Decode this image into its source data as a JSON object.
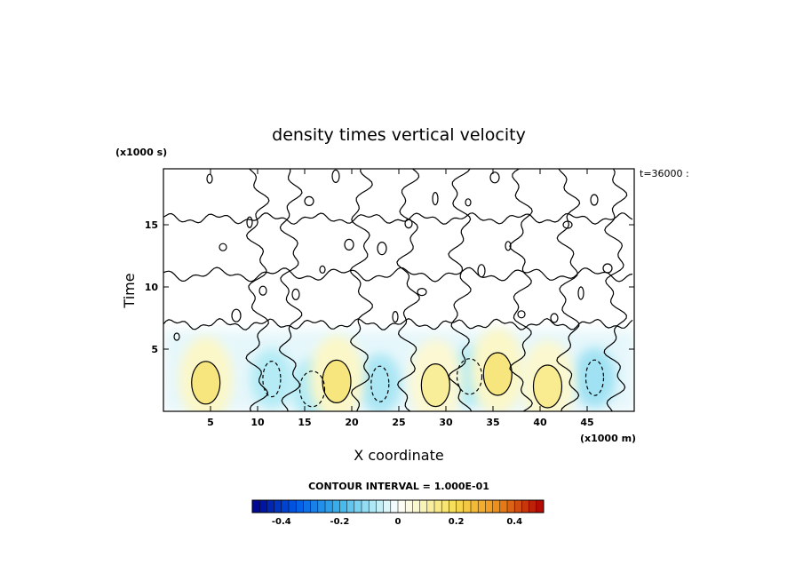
{
  "chart_data": {
    "type": "heatmap",
    "title": "density times vertical velocity",
    "xlabel": "X coordinate",
    "ylabel": "Time",
    "x_unit": "(x1000 m)",
    "y_unit": "(x1000 s)",
    "xlim": [
      0,
      50
    ],
    "ylim": [
      0,
      19.5
    ],
    "x_ticks": [
      5,
      10,
      15,
      20,
      25,
      30,
      35,
      40,
      45
    ],
    "y_ticks": [
      5,
      10,
      15
    ],
    "time_label": "t=36000 :",
    "contour_interval_label": "CONTOUR INTERVAL = 1.000E-01",
    "colorbar": {
      "range": [
        -0.5,
        0.5
      ],
      "ticks": [
        -0.4,
        -0.2,
        0,
        0.2,
        0.4
      ],
      "tick_labels": [
        "-0.4",
        "-0.2",
        "0",
        "0.2",
        "0.4"
      ]
    },
    "positive_cells": [
      {
        "x": 4.5,
        "y": 2.3,
        "value": 0.15
      },
      {
        "x": 18.4,
        "y": 2.4,
        "value": 0.15
      },
      {
        "x": 28.9,
        "y": 2.1,
        "value": 0.12
      },
      {
        "x": 35.5,
        "y": 3.0,
        "value": 0.15
      },
      {
        "x": 40.8,
        "y": 2.0,
        "value": 0.13
      }
    ],
    "negative_cells": [
      {
        "x": 11.5,
        "y": 2.6,
        "value": -0.08
      },
      {
        "x": 15.8,
        "y": 1.8,
        "value": -0.08
      },
      {
        "x": 23.0,
        "y": 2.2,
        "value": -0.09
      },
      {
        "x": 32.5,
        "y": 2.8,
        "value": -0.08
      },
      {
        "x": 45.8,
        "y": 2.7,
        "value": -0.1
      }
    ]
  }
}
